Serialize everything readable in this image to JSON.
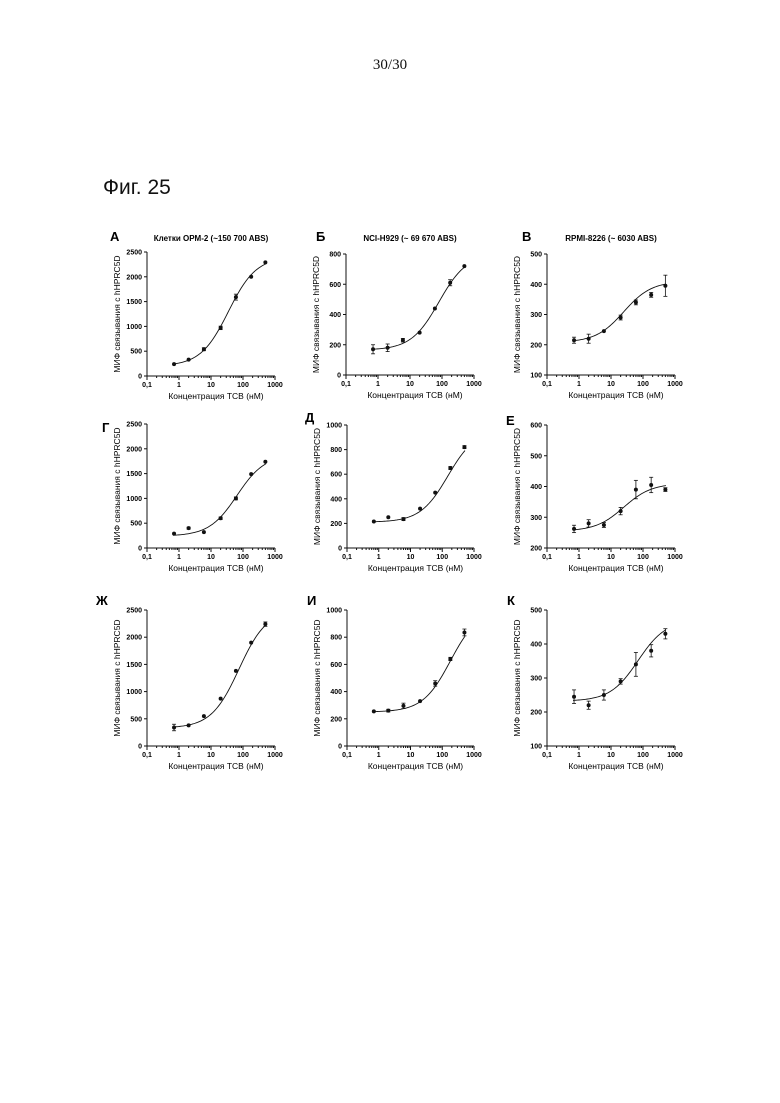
{
  "page_number": "30/30",
  "figure_title": "Фиг. 25",
  "chart_data": [
    {
      "type": "scatter",
      "letter": "А",
      "title": "Клетки OPM-2 (~150 700 ABS)",
      "xlabel": "Концентрация TCB (нМ)",
      "ylabel": "МИФ связывания с hHPRC5D",
      "xscale": "log",
      "xlim": [
        0.1,
        1000
      ],
      "xticks": [
        "0,1",
        "1",
        "10",
        "100",
        "1000"
      ],
      "ylim": [
        0,
        2500
      ],
      "yticks": [
        0,
        500,
        1000,
        1500,
        2000,
        2500
      ],
      "x": [
        0.7,
        2,
        6,
        20,
        60,
        180,
        500
      ],
      "y": [
        240,
        330,
        540,
        970,
        1590,
        2000,
        2290
      ],
      "err": [
        0,
        0,
        30,
        35,
        60,
        0,
        0
      ],
      "fit": {
        "bottom": 200,
        "top": 2400,
        "ec50": 35,
        "hill": 1
      }
    },
    {
      "type": "scatter",
      "letter": "Б",
      "title": "NCI-H929 (~ 69 670 ABS)",
      "xlabel": "Концентрация TCB (нМ)",
      "ylabel": "МИФ связывания с hHPRC5D",
      "xscale": "log",
      "xlim": [
        0.1,
        1000
      ],
      "xticks": [
        "0,1",
        "1",
        "10",
        "100",
        "1000"
      ],
      "ylim": [
        0,
        800
      ],
      "yticks": [
        0,
        200,
        400,
        600,
        800
      ],
      "x": [
        0.7,
        2,
        6,
        20,
        60,
        180,
        500
      ],
      "y": [
        170,
        180,
        230,
        280,
        440,
        610,
        720
      ],
      "err": [
        30,
        25,
        12,
        0,
        0,
        20,
        0
      ],
      "fit": {
        "bottom": 165,
        "top": 800,
        "ec50": 80,
        "hill": 1
      }
    },
    {
      "type": "scatter",
      "letter": "В",
      "title": "RPMI-8226 (~ 6030 ABS)",
      "xlabel": "Концентрация TCB (нМ)",
      "ylabel": "МИФ связывания с hHPRC5D",
      "xscale": "log",
      "xlim": [
        0.1,
        1000
      ],
      "xticks": [
        "0,1",
        "1",
        "10",
        "100",
        "1000"
      ],
      "ylim": [
        100,
        500
      ],
      "yticks": [
        100,
        200,
        300,
        400,
        500
      ],
      "x": [
        0.7,
        2,
        6,
        20,
        60,
        180,
        500
      ],
      "y": [
        215,
        220,
        245,
        290,
        340,
        365,
        395
      ],
      "err": [
        10,
        15,
        0,
        8,
        8,
        8,
        35
      ],
      "fit": {
        "bottom": 208,
        "top": 410,
        "ec50": 25,
        "hill": 1
      }
    },
    {
      "type": "scatter",
      "letter": "Г",
      "title": "",
      "xlabel": "Концентрация TCB (нМ)",
      "ylabel": "МИФ связывания с hHPRC5D",
      "xscale": "log",
      "xlim": [
        0.1,
        1000
      ],
      "xticks": [
        "0,1",
        "1",
        "10",
        "100",
        "1000"
      ],
      "ylim": [
        0,
        2500
      ],
      "yticks": [
        0,
        500,
        1000,
        1500,
        2000,
        2500
      ],
      "x": [
        0.7,
        2,
        6,
        20,
        60,
        180,
        500
      ],
      "y": [
        290,
        400,
        320,
        600,
        1000,
        1490,
        1740
      ],
      "err": [
        0,
        20,
        0,
        25,
        30,
        0,
        0
      ],
      "fit": {
        "bottom": 240,
        "top": 1880,
        "ec50": 65,
        "hill": 1
      }
    },
    {
      "type": "scatter",
      "letter": "Д",
      "title": "",
      "xlabel": "Концентрация TCB (нМ)",
      "ylabel": "МИФ связывания с hHPRC5D",
      "xscale": "log",
      "xlim": [
        0.1,
        1000
      ],
      "xticks": [
        "0,1",
        "1",
        "10",
        "100",
        "1000"
      ],
      "ylim": [
        0,
        1000
      ],
      "yticks": [
        0,
        200,
        400,
        600,
        800,
        1000
      ],
      "x": [
        0.7,
        2,
        6,
        20,
        60,
        180,
        500
      ],
      "y": [
        215,
        250,
        235,
        320,
        450,
        650,
        820
      ],
      "err": [
        0,
        0,
        12,
        0,
        0,
        12,
        12
      ],
      "fit": {
        "bottom": 210,
        "top": 960,
        "ec50": 150,
        "hill": 1
      }
    },
    {
      "type": "scatter",
      "letter": "Е",
      "title": "",
      "xlabel": "Концентрация TCB (нМ)",
      "ylabel": "МИФ связывания с hHPRC5D",
      "xscale": "log",
      "xlim": [
        0.1,
        1000
      ],
      "xticks": [
        "0,1",
        "1",
        "10",
        "100",
        "1000"
      ],
      "ylim": [
        200,
        600
      ],
      "yticks": [
        200,
        300,
        400,
        500,
        600
      ],
      "x": [
        0.7,
        2,
        6,
        20,
        60,
        180,
        500
      ],
      "y": [
        262,
        280,
        275,
        320,
        390,
        405,
        390
      ],
      "err": [
        12,
        12,
        8,
        12,
        30,
        25,
        6
      ],
      "fit": {
        "bottom": 255,
        "top": 410,
        "ec50": 25,
        "hill": 1
      }
    },
    {
      "type": "scatter",
      "letter": "Ж",
      "title": "",
      "xlabel": "Концентрация TCB (нМ)",
      "ylabel": "МИФ связывания с hHPRC5D",
      "xscale": "log",
      "xlim": [
        0.1,
        1000
      ],
      "xticks": [
        "0,1",
        "1",
        "10",
        "100",
        "1000"
      ],
      "ylim": [
        0,
        2500
      ],
      "yticks": [
        0,
        500,
        1000,
        1500,
        2000,
        2500
      ],
      "x": [
        0.7,
        2,
        6,
        20,
        60,
        180,
        500
      ],
      "y": [
        340,
        380,
        550,
        870,
        1380,
        1900,
        2240
      ],
      "err": [
        60,
        0,
        0,
        0,
        0,
        0,
        40
      ],
      "fit": {
        "bottom": 330,
        "top": 2500,
        "ec50": 75,
        "hill": 1
      }
    },
    {
      "type": "scatter",
      "letter": "И",
      "title": "",
      "xlabel": "Концентрация TCB (нМ)",
      "ylabel": "МИФ связывания с hHPRC5D",
      "xscale": "log",
      "xlim": [
        0.1,
        1000
      ],
      "xticks": [
        "0,1",
        "1",
        "10",
        "100",
        "1000"
      ],
      "ylim": [
        0,
        1000
      ],
      "yticks": [
        0,
        200,
        400,
        600,
        800,
        1000
      ],
      "x": [
        0.7,
        2,
        6,
        20,
        60,
        180,
        500
      ],
      "y": [
        255,
        260,
        295,
        330,
        460,
        640,
        835
      ],
      "err": [
        0,
        10,
        20,
        0,
        20,
        12,
        25
      ],
      "fit": {
        "bottom": 250,
        "top": 1000,
        "ec50": 180,
        "hill": 1
      }
    },
    {
      "type": "scatter",
      "letter": "К",
      "title": "",
      "xlabel": "Концентрация TCB (нМ)",
      "ylabel": "МИФ связывания с hHPRC5D",
      "xscale": "log",
      "xlim": [
        0.1,
        1000
      ],
      "xticks": [
        "0,1",
        "1",
        "10",
        "100",
        "1000"
      ],
      "ylim": [
        100,
        500
      ],
      "yticks": [
        100,
        200,
        300,
        400,
        500
      ],
      "x": [
        0.7,
        2,
        6,
        20,
        60,
        180,
        500
      ],
      "y": [
        245,
        220,
        250,
        290,
        340,
        380,
        430
      ],
      "err": [
        20,
        12,
        15,
        8,
        35,
        18,
        15
      ],
      "fit": {
        "bottom": 232,
        "top": 470,
        "ec50": 70,
        "hill": 1
      }
    }
  ]
}
